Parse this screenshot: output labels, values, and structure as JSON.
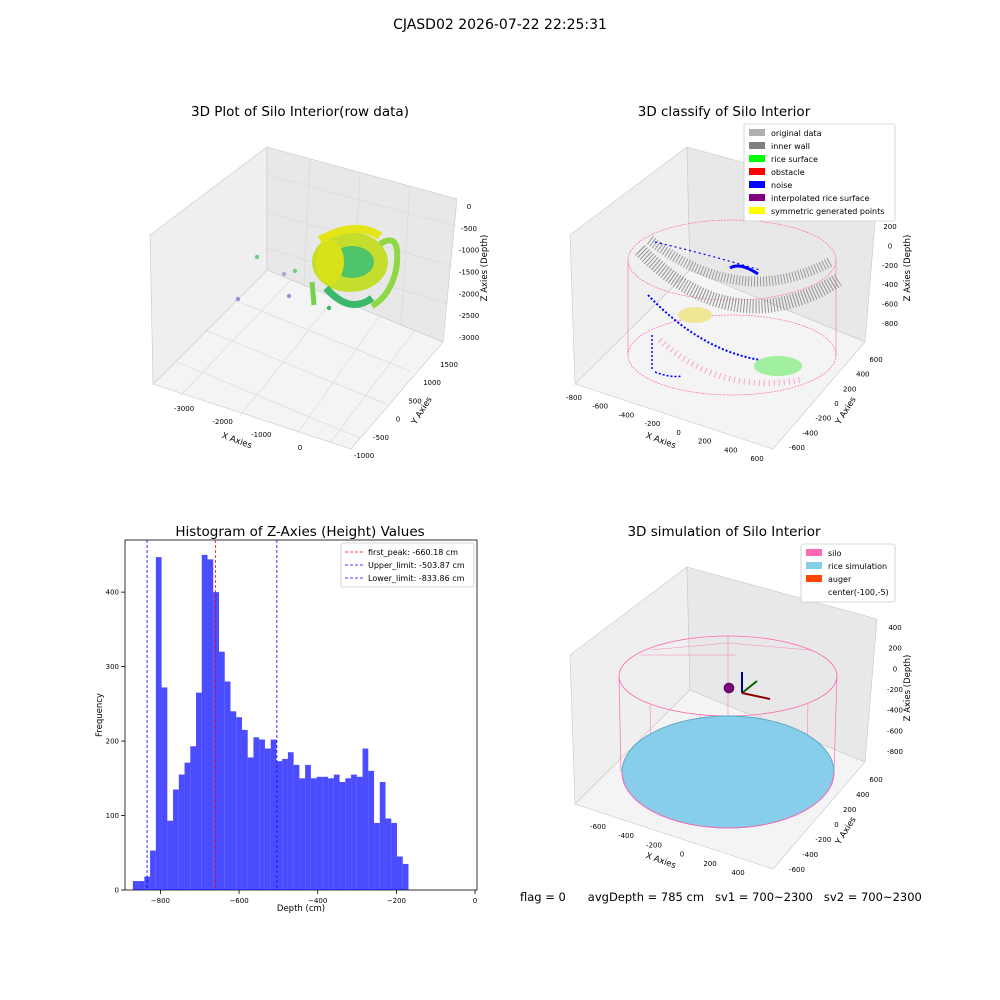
{
  "figure": {
    "suptitle": "CJASD02 2026-07-22 22:25:31"
  },
  "panels": {
    "raw": {
      "title": "3D Plot of Silo Interior(row data)",
      "xlabel": "X Axies",
      "ylabel": "Y Axies",
      "zlabel": "Z Axies (Depth)",
      "xticks": [
        "-3000",
        "-2000",
        "-1000",
        "0"
      ],
      "yticks": [
        "-1000",
        "-500",
        "0",
        "500",
        "1000",
        "1500"
      ],
      "zticks": [
        "0",
        "-500",
        "-1000",
        "-1500",
        "-2000",
        "-2500",
        "-3000"
      ]
    },
    "classify": {
      "title": "3D classify of Silo Interior",
      "xlabel": "X Axies",
      "ylabel": "Y Axies",
      "zlabel": "Z Axies (Depth)",
      "xticks": [
        "-800",
        "-600",
        "-400",
        "-200",
        "0",
        "200",
        "400",
        "600"
      ],
      "yticks": [
        "-600",
        "-400",
        "-200",
        "0",
        "200",
        "400",
        "600"
      ],
      "zticks": [
        "200",
        "0",
        "-200",
        "-400",
        "-600",
        "-800"
      ],
      "legend": [
        {
          "label": "original data",
          "color": "#b0b0b0"
        },
        {
          "label": "inner wall",
          "color": "#808080"
        },
        {
          "label": "rice surface",
          "color": "#00ff00"
        },
        {
          "label": "obstacle",
          "color": "#ff0000"
        },
        {
          "label": "noise",
          "color": "#0000ff"
        },
        {
          "label": "interpolated rice surface",
          "color": "#800080"
        },
        {
          "label": "symmetric generated points",
          "color": "#ffff00"
        }
      ]
    },
    "simulation": {
      "title": "3D simulation of Silo Interior",
      "xlabel": "X Axies",
      "ylabel": "Y Axies",
      "zlabel": "Z Axies (Depth)",
      "xticks": [
        "-600",
        "-400",
        "-200",
        "0",
        "200",
        "400"
      ],
      "yticks": [
        "-600",
        "-400",
        "-200",
        "0",
        "200",
        "400",
        "600"
      ],
      "zticks": [
        "400",
        "200",
        "0",
        "-200",
        "-400",
        "-600",
        "-800"
      ],
      "legend": [
        {
          "label": "silo",
          "color": "#ff69b4"
        },
        {
          "label": "rice simulation",
          "color": "#87ceeb"
        },
        {
          "label": "auger",
          "color": "#ff4500"
        },
        {
          "label": "center(-100,-5)",
          "color": ""
        }
      ]
    }
  },
  "chart_data": {
    "type": "bar",
    "title": "Histogram of Z-Axies (Height) Values",
    "xlabel": "Depth (cm)",
    "ylabel": "Frequency",
    "xlim": [
      -890,
      5
    ],
    "ylim": [
      0,
      470
    ],
    "xticks": [
      -800,
      -600,
      -400,
      -200,
      0
    ],
    "yticks": [
      0,
      100,
      200,
      300,
      400
    ],
    "bar_color": "#0000ff",
    "bin_start": -870,
    "bin_width": 14.6,
    "values": [
      12,
      12,
      18,
      53,
      447,
      272,
      93,
      135,
      155,
      171,
      193,
      265,
      450,
      444,
      400,
      320,
      280,
      240,
      232,
      215,
      178,
      205,
      202,
      190,
      202,
      173,
      176,
      185,
      168,
      150,
      168,
      150,
      152,
      152,
      150,
      155,
      145,
      150,
      155,
      152,
      190,
      160,
      90,
      145,
      96,
      90,
      45,
      35
    ],
    "vlines": [
      {
        "label": "first_peak: -660.18 cm",
        "x": -660.18,
        "color": "#ff0000"
      },
      {
        "label": "Upper_limit: -503.87 cm",
        "x": -503.87,
        "color": "#0000ff"
      },
      {
        "label": "Lower_limit: -833.86 cm",
        "x": -833.86,
        "color": "#0000ff"
      }
    ],
    "legend_position": "upper right"
  },
  "status": {
    "flag": "flag = 0",
    "avg_depth": "avgDepth = 785 cm",
    "sv1": "sv1 = 700~2300",
    "sv2": "sv2 = 700~2300"
  }
}
